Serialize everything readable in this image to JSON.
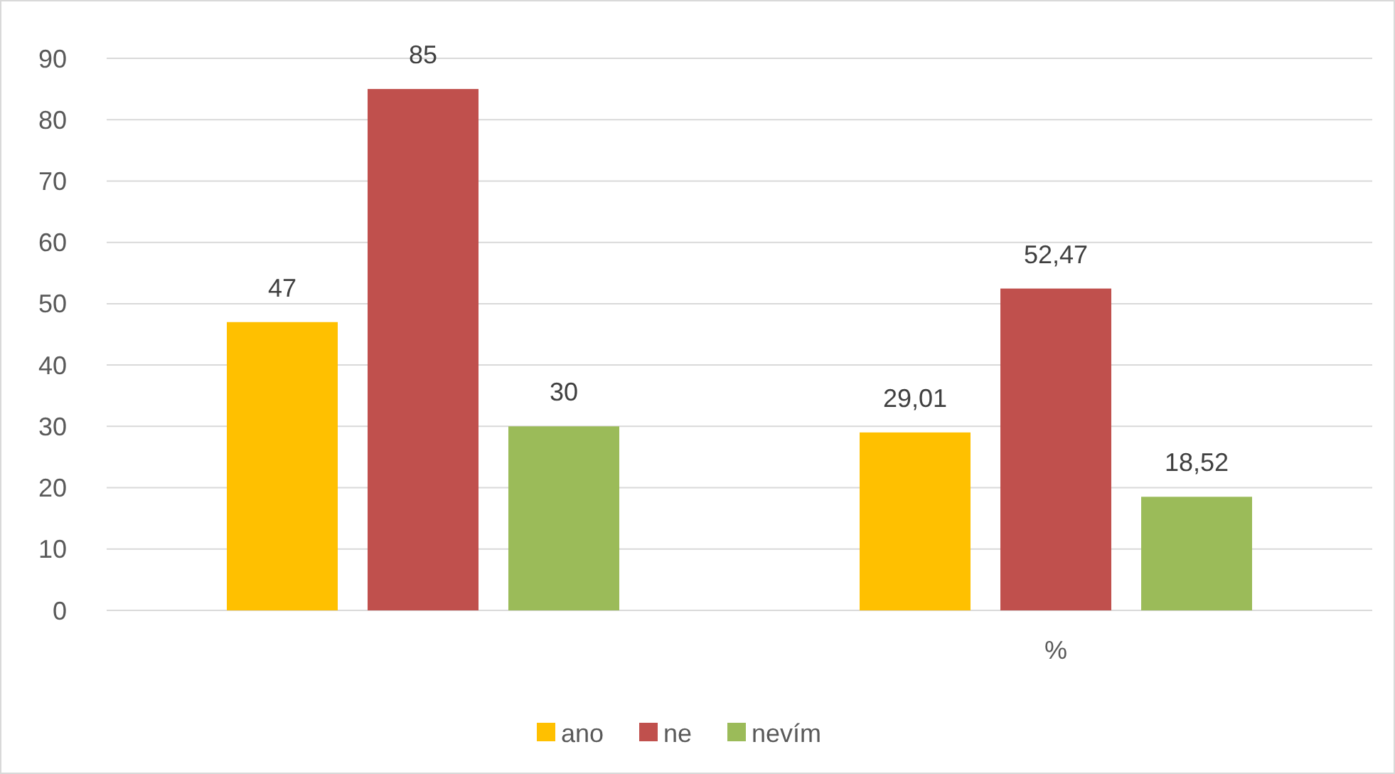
{
  "chart_data": {
    "type": "bar",
    "categories": [
      null,
      "%"
    ],
    "series": [
      {
        "name": "ano",
        "color": "#ffc000",
        "values": [
          47,
          29.01
        ],
        "value_labels": [
          "47",
          "29,01"
        ]
      },
      {
        "name": "ne",
        "color": "#c0504d",
        "values": [
          85,
          52.47
        ],
        "value_labels": [
          "85",
          "52,47"
        ]
      },
      {
        "name": "nevím",
        "color": "#9bbb59",
        "values": [
          30,
          18.52
        ],
        "value_labels": [
          "30",
          "18,52"
        ]
      }
    ],
    "ylim": [
      0,
      90
    ],
    "yticks": [
      0,
      10,
      20,
      30,
      40,
      50,
      60,
      70,
      80,
      90
    ],
    "grid": "y",
    "legend": "bottom"
  }
}
